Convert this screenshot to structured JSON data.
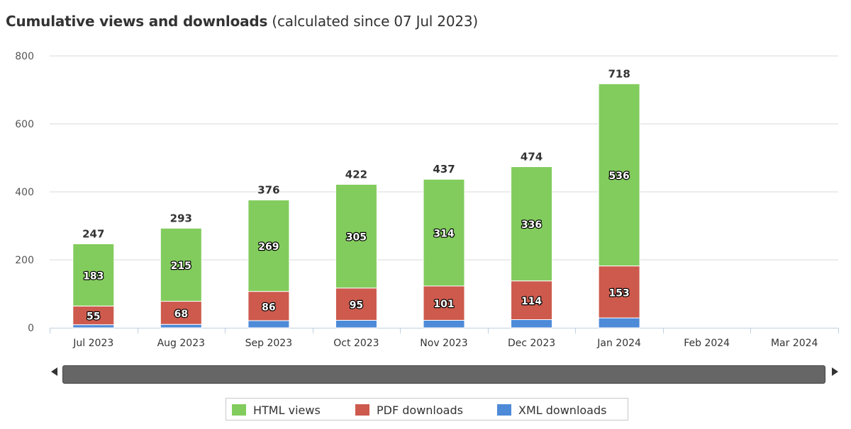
{
  "title": {
    "main": "Cumulative views and downloads",
    "sub": "(calculated since 07 Jul 2023)"
  },
  "colors": {
    "html": "#82cc5d",
    "pdf": "#cd5a4d",
    "xml": "#4d8ad8",
    "grid": "#d8d8d8",
    "axis": "#c0d0e0"
  },
  "chart_data": {
    "type": "bar",
    "stacked": true,
    "categories": [
      "Jul 2023",
      "Aug 2023",
      "Sep 2023",
      "Oct 2023",
      "Nov 2023",
      "Dec 2023",
      "Jan 2024",
      "Feb 2024",
      "Mar 2024"
    ],
    "series": [
      {
        "name": "XML downloads",
        "values": [
          9,
          10,
          21,
          22,
          22,
          24,
          29,
          null,
          null
        ]
      },
      {
        "name": "PDF downloads",
        "values": [
          55,
          68,
          86,
          95,
          101,
          114,
          153,
          null,
          null
        ]
      },
      {
        "name": "HTML views",
        "values": [
          183,
          215,
          269,
          305,
          314,
          336,
          536,
          null,
          null
        ]
      }
    ],
    "totals": [
      247,
      293,
      376,
      422,
      437,
      474,
      718,
      null,
      null
    ],
    "yticks": [
      0,
      200,
      400,
      600,
      800
    ],
    "ylim": [
      0,
      800
    ],
    "grid": true,
    "legend": "bottom-center"
  },
  "legend": {
    "items": [
      {
        "label": "HTML views",
        "color": "#82cc5d"
      },
      {
        "label": "PDF downloads",
        "color": "#cd5a4d"
      },
      {
        "label": "XML downloads",
        "color": "#4d8ad8"
      }
    ]
  }
}
